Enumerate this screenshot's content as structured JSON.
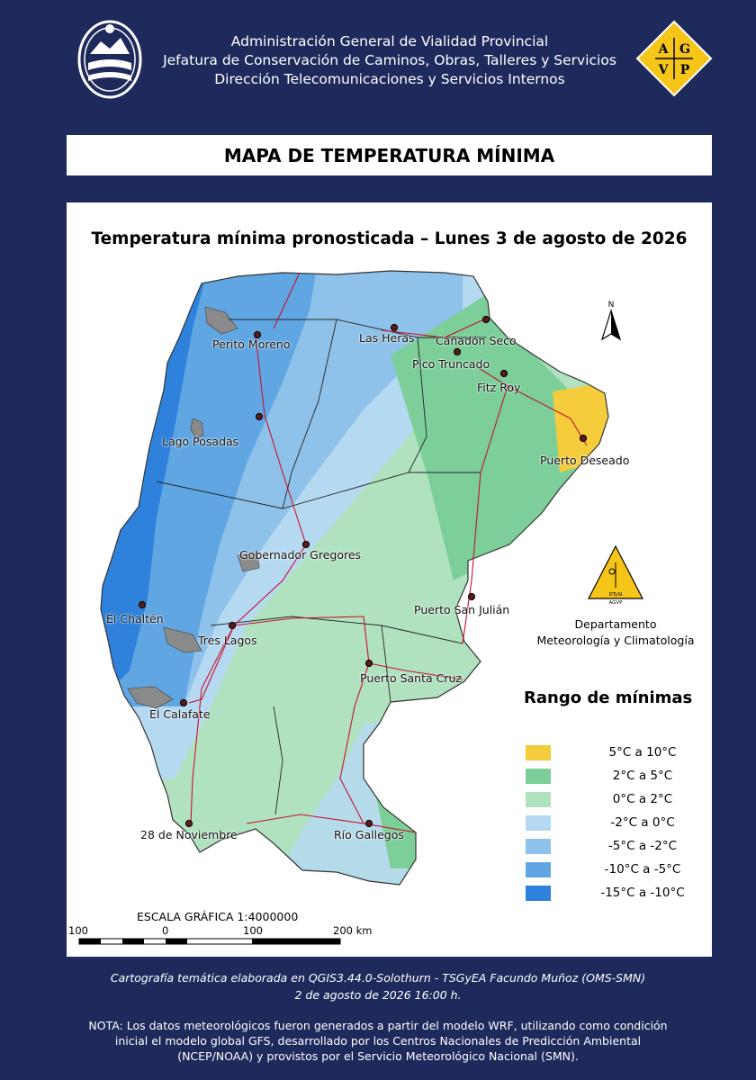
{
  "header": {
    "line1": "Administración General de Vialidad Provincial",
    "line2": "Jefatura de Conservación de Caminos, Obras, Talleres y Servicios",
    "line3": "Dirección Telecomunicaciones y Servicios Internos",
    "logo_letters": [
      "A",
      "G",
      "V",
      "P"
    ],
    "logo_color": "#f5c518"
  },
  "main_title": "MAPA DE TEMPERATURA MÍNIMA",
  "map": {
    "title": "Temperatura mínima pronosticada – Lunes 3 de agosto de 2026",
    "north_label": "N",
    "cities": [
      {
        "name": "Perito Moreno"
      },
      {
        "name": "Las Heras"
      },
      {
        "name": "Cañadón Seco"
      },
      {
        "name": "Pico Truncado"
      },
      {
        "name": "Fitz Roy"
      },
      {
        "name": "Lago Posadas"
      },
      {
        "name": "Puerto Deseado"
      },
      {
        "name": "Gobernador Gregores"
      },
      {
        "name": "Puerto San Julián"
      },
      {
        "name": "El Chaltén"
      },
      {
        "name": "Tres Lagos"
      },
      {
        "name": "Puerto Santa Cruz"
      },
      {
        "name": "El Calafate"
      },
      {
        "name": "28 de Noviembre"
      },
      {
        "name": "Río Gallegos"
      }
    ],
    "department": {
      "logo_text": [
        "DTySI",
        "AGVP"
      ],
      "line1": "Departamento",
      "line2": "Meteorología y Climatología"
    },
    "legend": {
      "title": "Rango de mínimas",
      "items": [
        {
          "label": "5°C a 10°C",
          "color": "#f5cc3c"
        },
        {
          "label": "2°C a 5°C",
          "color": "#7ccf99"
        },
        {
          "label": "0°C a 2°C",
          "color": "#b0e2c0"
        },
        {
          "label": "-2°C a 0°C",
          "color": "#b6d9f2"
        },
        {
          "label": "-5°C a -2°C",
          "color": "#8fc2ea"
        },
        {
          "label": "-10°C a -5°C",
          "color": "#5fa6e2"
        },
        {
          "label": "-15°C a -10°C",
          "color": "#2f82dc"
        }
      ]
    },
    "scale": {
      "title": "ESCALA GRÁFICA 1:4000000",
      "ticks": [
        "100",
        "0",
        "100",
        "200 km"
      ]
    }
  },
  "footer": {
    "credit": "Cartografía temática elaborada en QGIS3.44.0-Solothurn - TSGyEA Facundo Muñoz (OMS-SMN)",
    "date": "2 de agosto de 2026 16:00 h.",
    "note_line1": "NOTA: Los datos meteorológicos fueron generados a partir del modelo WRF, utilizando como condición",
    "note_line2": "inicial el modelo global GFS, desarrollado por los Centros Nacionales de Predicción Ambiental",
    "note_line3": "(NCEP/NOAA) y provistos por el Servicio Meteorológico Nacional (SMN)."
  }
}
